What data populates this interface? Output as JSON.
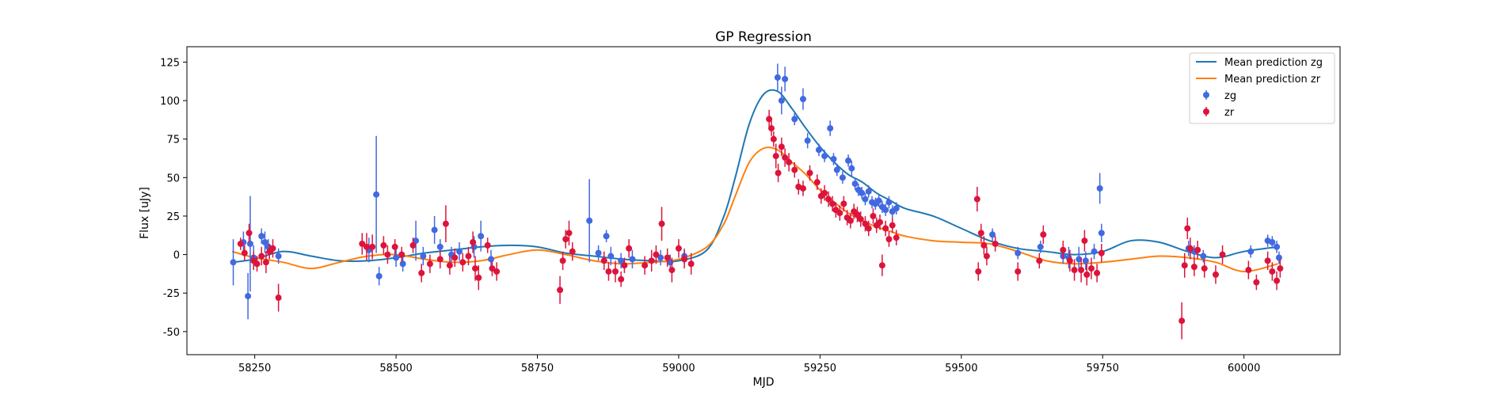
{
  "chart_data": {
    "type": "scatter",
    "title": "GP Regression",
    "xlabel": "MJD",
    "ylabel": "Flux [uJy]",
    "xlim": [
      58130,
      60170
    ],
    "ylim": [
      -65,
      135
    ],
    "xticks": [
      58250,
      58500,
      58750,
      59000,
      59250,
      59500,
      59750,
      60000
    ],
    "yticks": [
      -50,
      -25,
      0,
      25,
      50,
      75,
      100,
      125
    ],
    "grid": false,
    "legend": {
      "placement": "top-right",
      "entries": [
        "Mean prediction zg",
        "Mean prediction zr",
        "zg",
        "zr"
      ]
    },
    "colors": {
      "line_zg": "#1f77b4",
      "line_zr": "#ff7f0e",
      "points_zg": "#4169e1",
      "points_zr": "#dc143c"
    },
    "lines": [
      {
        "name": "Mean prediction zg",
        "x": [
          58210,
          58250,
          58300,
          58350,
          58400,
          58450,
          58500,
          58550,
          58600,
          58650,
          58700,
          58750,
          58800,
          58850,
          58900,
          58950,
          59000,
          59050,
          59080,
          59100,
          59125,
          59150,
          59175,
          59200,
          59225,
          59250,
          59275,
          59300,
          59325,
          59350,
          59375,
          59400,
          59450,
          59500,
          59550,
          59600,
          59650,
          59700,
          59750,
          59800,
          59850,
          59900,
          59950,
          60000,
          60060
        ],
        "y": [
          -5,
          -3,
          2,
          -1,
          -4,
          -4,
          -2,
          1,
          3,
          5,
          6,
          5,
          1,
          -1,
          -3,
          -4,
          -4,
          3,
          25,
          50,
          85,
          104,
          106,
          95,
          82,
          70,
          60,
          52,
          47,
          40,
          35,
          30,
          25,
          17,
          9,
          4,
          2,
          0,
          2,
          9,
          8,
          2,
          -2,
          2,
          5
        ]
      },
      {
        "name": "Mean prediction zr",
        "x": [
          58210,
          58250,
          58300,
          58350,
          58400,
          58450,
          58500,
          58550,
          58600,
          58650,
          58700,
          58750,
          58800,
          58850,
          58900,
          58950,
          59000,
          59050,
          59080,
          59100,
          59125,
          59150,
          59175,
          59200,
          59225,
          59250,
          59275,
          59300,
          59325,
          59350,
          59375,
          59400,
          59450,
          59500,
          59550,
          59600,
          59650,
          59700,
          59750,
          59800,
          59850,
          59900,
          59950,
          60000,
          60060
        ],
        "y": [
          2,
          -2,
          -5,
          -9,
          -5,
          -1,
          0,
          -3,
          -5,
          -4,
          0,
          3,
          0,
          -4,
          -6,
          -5,
          -3,
          5,
          20,
          38,
          60,
          69,
          68,
          60,
          52,
          42,
          34,
          27,
          22,
          18,
          15,
          12,
          9,
          8,
          7,
          2,
          -4,
          -6,
          -5,
          -3,
          -1,
          -2,
          -5,
          -11,
          -6
        ]
      }
    ],
    "series": [
      {
        "name": "zg",
        "marker": "errorbar",
        "points": [
          [
            58212,
            -5,
            15
          ],
          [
            58230,
            8,
            7
          ],
          [
            58238,
            -27,
            15
          ],
          [
            58242,
            7,
            31
          ],
          [
            58248,
            -2,
            8
          ],
          [
            58262,
            12,
            5
          ],
          [
            58268,
            8,
            7
          ],
          [
            58274,
            5,
            5
          ],
          [
            58292,
            -1,
            5
          ],
          [
            58452,
            3,
            8
          ],
          [
            58465,
            39,
            38
          ],
          [
            58470,
            -14,
            6
          ],
          [
            58500,
            -2,
            6
          ],
          [
            58512,
            -6,
            5
          ],
          [
            58535,
            9,
            13
          ],
          [
            58548,
            -1,
            6
          ],
          [
            58568,
            16,
            9
          ],
          [
            58578,
            5,
            5
          ],
          [
            58598,
            0,
            5
          ],
          [
            58612,
            2,
            6
          ],
          [
            58638,
            5,
            7
          ],
          [
            58650,
            12,
            10
          ],
          [
            58668,
            -3,
            6
          ],
          [
            58842,
            22,
            27
          ],
          [
            58858,
            1,
            5
          ],
          [
            58872,
            12,
            4
          ],
          [
            58880,
            -1,
            6
          ],
          [
            58898,
            -4,
            5
          ],
          [
            58918,
            -3,
            6
          ],
          [
            58968,
            -2,
            5
          ],
          [
            58985,
            -5,
            5
          ],
          [
            59010,
            -1,
            5
          ],
          [
            59175,
            115,
            9
          ],
          [
            59182,
            100,
            9
          ],
          [
            59188,
            114,
            8
          ],
          [
            59205,
            88,
            4
          ],
          [
            59220,
            101,
            7
          ],
          [
            59228,
            74,
            5
          ],
          [
            59248,
            68,
            4
          ],
          [
            59258,
            64,
            4
          ],
          [
            59268,
            82,
            5
          ],
          [
            59274,
            62,
            4
          ],
          [
            59280,
            55,
            4
          ],
          [
            59290,
            50,
            4
          ],
          [
            59300,
            61,
            4
          ],
          [
            59306,
            56,
            5
          ],
          [
            59312,
            46,
            4
          ],
          [
            59318,
            42,
            4
          ],
          [
            59324,
            40,
            4
          ],
          [
            59330,
            36,
            4
          ],
          [
            59336,
            41,
            4
          ],
          [
            59342,
            34,
            4
          ],
          [
            59348,
            33,
            4
          ],
          [
            59354,
            35,
            4
          ],
          [
            59360,
            31,
            4
          ],
          [
            59366,
            29,
            4
          ],
          [
            59372,
            34,
            4
          ],
          [
            59378,
            28,
            4
          ],
          [
            59385,
            30,
            4
          ],
          [
            59555,
            13,
            4
          ],
          [
            59600,
            1,
            4
          ],
          [
            59640,
            5,
            4
          ],
          [
            59680,
            -1,
            5
          ],
          [
            59690,
            -2,
            7
          ],
          [
            59708,
            -3,
            8
          ],
          [
            59720,
            -4,
            6
          ],
          [
            59735,
            2,
            5
          ],
          [
            59745,
            43,
            10
          ],
          [
            59748,
            14,
            6
          ],
          [
            59902,
            4,
            5
          ],
          [
            59912,
            2,
            4
          ],
          [
            59928,
            -1,
            4
          ],
          [
            60012,
            2,
            4
          ],
          [
            60042,
            9,
            4
          ],
          [
            60050,
            8,
            4
          ],
          [
            60058,
            5,
            4
          ],
          [
            60062,
            -2,
            4
          ]
        ]
      },
      {
        "name": "zr",
        "marker": "errorbar",
        "points": [
          [
            58225,
            7,
            4
          ],
          [
            58232,
            1,
            5
          ],
          [
            58240,
            14,
            6
          ],
          [
            58248,
            -4,
            6
          ],
          [
            58254,
            -6,
            5
          ],
          [
            58262,
            -1,
            6
          ],
          [
            58270,
            -5,
            7
          ],
          [
            58276,
            2,
            5
          ],
          [
            58282,
            4,
            6
          ],
          [
            58292,
            -28,
            9
          ],
          [
            58440,
            7,
            7
          ],
          [
            58448,
            5,
            9
          ],
          [
            58458,
            5,
            8
          ],
          [
            58478,
            6,
            6
          ],
          [
            58485,
            0,
            6
          ],
          [
            58498,
            5,
            5
          ],
          [
            58510,
            0,
            5
          ],
          [
            58530,
            6,
            5
          ],
          [
            58545,
            -12,
            6
          ],
          [
            58560,
            -6,
            6
          ],
          [
            58578,
            -3,
            6
          ],
          [
            58588,
            20,
            12
          ],
          [
            58595,
            -7,
            6
          ],
          [
            58604,
            -2,
            6
          ],
          [
            58618,
            -5,
            6
          ],
          [
            58628,
            -1,
            6
          ],
          [
            58636,
            8,
            7
          ],
          [
            58640,
            -9,
            8
          ],
          [
            58646,
            -15,
            8
          ],
          [
            58662,
            6,
            5
          ],
          [
            58670,
            -9,
            5
          ],
          [
            58678,
            -11,
            6
          ],
          [
            58790,
            -23,
            9
          ],
          [
            58795,
            -4,
            6
          ],
          [
            58800,
            10,
            6
          ],
          [
            58806,
            14,
            8
          ],
          [
            58812,
            2,
            6
          ],
          [
            58868,
            -4,
            6
          ],
          [
            58876,
            -11,
            6
          ],
          [
            58888,
            -11,
            7
          ],
          [
            58898,
            -16,
            5
          ],
          [
            58904,
            -7,
            5
          ],
          [
            58912,
            4,
            6
          ],
          [
            58940,
            -7,
            6
          ],
          [
            58952,
            -4,
            7
          ],
          [
            58960,
            0,
            6
          ],
          [
            58970,
            20,
            11
          ],
          [
            58980,
            -2,
            6
          ],
          [
            58988,
            -10,
            8
          ],
          [
            59000,
            4,
            6
          ],
          [
            59010,
            -3,
            6
          ],
          [
            59022,
            -6,
            7
          ],
          [
            59160,
            88,
            6
          ],
          [
            59164,
            82,
            5
          ],
          [
            59168,
            75,
            5
          ],
          [
            59172,
            64,
            8
          ],
          [
            59176,
            53,
            6
          ],
          [
            59182,
            70,
            6
          ],
          [
            59188,
            63,
            6
          ],
          [
            59195,
            60,
            6
          ],
          [
            59205,
            55,
            5
          ],
          [
            59212,
            44,
            5
          ],
          [
            59220,
            43,
            5
          ],
          [
            59232,
            53,
            5
          ],
          [
            59245,
            47,
            5
          ],
          [
            59252,
            38,
            5
          ],
          [
            59258,
            40,
            5
          ],
          [
            59265,
            36,
            5
          ],
          [
            59272,
            33,
            5
          ],
          [
            59278,
            29,
            5
          ],
          [
            59285,
            27,
            5
          ],
          [
            59292,
            33,
            5
          ],
          [
            59298,
            24,
            5
          ],
          [
            59304,
            22,
            5
          ],
          [
            59310,
            28,
            5
          ],
          [
            59316,
            26,
            5
          ],
          [
            59322,
            23,
            5
          ],
          [
            59330,
            20,
            5
          ],
          [
            59336,
            17,
            5
          ],
          [
            59344,
            25,
            5
          ],
          [
            59350,
            19,
            5
          ],
          [
            59356,
            21,
            5
          ],
          [
            59360,
            -7,
            7
          ],
          [
            59366,
            17,
            5
          ],
          [
            59372,
            10,
            5
          ],
          [
            59378,
            19,
            5
          ],
          [
            59385,
            11,
            5
          ],
          [
            59528,
            36,
            8
          ],
          [
            59530,
            -11,
            6
          ],
          [
            59535,
            14,
            6
          ],
          [
            59540,
            6,
            6
          ],
          [
            59545,
            -1,
            6
          ],
          [
            59560,
            7,
            5
          ],
          [
            59600,
            -11,
            6
          ],
          [
            59638,
            -4,
            5
          ],
          [
            59645,
            13,
            6
          ],
          [
            59680,
            3,
            6
          ],
          [
            59692,
            -4,
            7
          ],
          [
            59700,
            -10,
            7
          ],
          [
            59712,
            -10,
            8
          ],
          [
            59718,
            9,
            7
          ],
          [
            59722,
            -13,
            7
          ],
          [
            59730,
            -9,
            7
          ],
          [
            59740,
            -12,
            6
          ],
          [
            59748,
            1,
            6
          ],
          [
            59890,
            -43,
            12
          ],
          [
            59895,
            -7,
            8
          ],
          [
            59900,
            17,
            7
          ],
          [
            59905,
            4,
            7
          ],
          [
            59912,
            -8,
            6
          ],
          [
            59918,
            3,
            6
          ],
          [
            59930,
            -9,
            6
          ],
          [
            59950,
            -13,
            6
          ],
          [
            59962,
            0,
            6
          ],
          [
            60008,
            -10,
            6
          ],
          [
            60022,
            -18,
            5
          ],
          [
            60042,
            -4,
            6
          ],
          [
            60050,
            -11,
            6
          ],
          [
            60058,
            -17,
            6
          ],
          [
            60064,
            -9,
            6
          ]
        ]
      }
    ]
  }
}
